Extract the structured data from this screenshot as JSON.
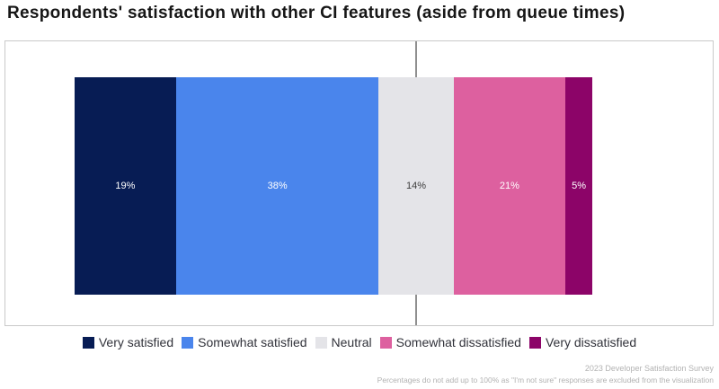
{
  "title": "Respondents' satisfaction with other CI features (aside from queue times)",
  "chart_data": {
    "type": "bar",
    "subtype": "horizontal-diverging-stacked",
    "title": "Respondents' satisfaction with other CI features (aside from queue times)",
    "categories": [
      "Very satisfied",
      "Somewhat satisfied",
      "Neutral",
      "Somewhat dissatisfied",
      "Very dissatisfied"
    ],
    "values": [
      19,
      38,
      14,
      21,
      5
    ],
    "labels": [
      "19%",
      "38%",
      "14%",
      "21%",
      "5%"
    ],
    "colors": [
      "#071c54",
      "#4a85ec",
      "#e4e4e8",
      "#dd609f",
      "#8c0468"
    ],
    "label_colors": [
      "#ffffff",
      "#ffffff",
      "#3c3c3c",
      "#ffffff",
      "#ffffff"
    ],
    "legend_position": "bottom",
    "axis_note": "vertical reference line centered on Neutral segment",
    "grid": false
  },
  "footer": {
    "line1": "2023 Developer Satisfaction Survey",
    "line2": "Percentages do not add up to 100% as \"I'm not sure\" responses are excluded from the visualization"
  }
}
